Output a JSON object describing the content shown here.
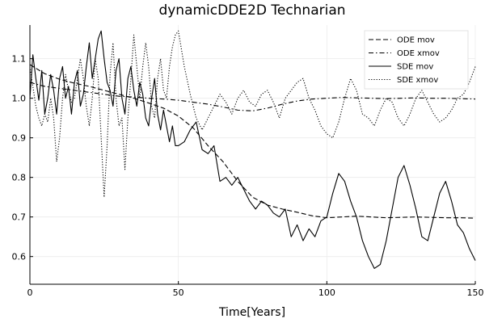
{
  "chart_data": {
    "type": "line",
    "title": "dynamicDDE2D Technarian",
    "xlabel": "Time[Years]",
    "ylabel": "",
    "xlim": [
      0,
      150
    ],
    "ylim": [
      0.53,
      1.185
    ],
    "xticks": [
      0,
      50,
      100,
      150
    ],
    "yticks": [
      0.6,
      0.7,
      0.8,
      0.9,
      1.0,
      1.1
    ],
    "xtick_labels": [
      "0",
      "50",
      "100",
      "150"
    ],
    "ytick_labels": [
      "0.6",
      "0.7",
      "0.8",
      "0.9",
      "1.0",
      "1.1"
    ],
    "grid": true,
    "legend_position": "top-right",
    "series": [
      {
        "name": "ODE mov",
        "style": "dashed",
        "color": "#000000",
        "x": [
          0,
          5,
          10,
          15,
          20,
          25,
          30,
          35,
          40,
          45,
          50,
          55,
          60,
          65,
          70,
          75,
          80,
          85,
          90,
          95,
          100,
          105,
          110,
          115,
          120,
          125,
          130,
          135,
          140,
          145,
          150
        ],
        "y": [
          1.085,
          1.062,
          1.048,
          1.038,
          1.03,
          1.02,
          1.01,
          1.0,
          0.988,
          0.975,
          0.955,
          0.925,
          0.88,
          0.84,
          0.79,
          0.75,
          0.73,
          0.72,
          0.712,
          0.703,
          0.698,
          0.7,
          0.702,
          0.7,
          0.698,
          0.699,
          0.7,
          0.699,
          0.698,
          0.698,
          0.697
        ]
      },
      {
        "name": "ODE xmov",
        "style": "dashdot",
        "color": "#000000",
        "x": [
          0,
          5,
          10,
          15,
          20,
          25,
          30,
          35,
          40,
          45,
          50,
          55,
          60,
          65,
          70,
          75,
          80,
          85,
          90,
          95,
          100,
          105,
          110,
          115,
          120,
          125,
          130,
          135,
          140,
          145,
          150
        ],
        "y": [
          1.04,
          1.03,
          1.025,
          1.02,
          1.015,
          1.01,
          1.005,
          1.003,
          1.0,
          0.998,
          0.995,
          0.99,
          0.985,
          0.978,
          0.97,
          0.968,
          0.975,
          0.985,
          0.993,
          0.998,
          1.0,
          1.002,
          1.001,
          1.0,
          0.999,
          1.0,
          1.001,
          1.0,
          1.0,
          0.999,
          0.998
        ]
      },
      {
        "name": "SDE mov",
        "style": "solid",
        "color": "#000000",
        "x": [
          0,
          1,
          2,
          3,
          4,
          5,
          6,
          7,
          8,
          9,
          10,
          11,
          12,
          13,
          14,
          15,
          16,
          17,
          18,
          19,
          20,
          21,
          22,
          23,
          24,
          25,
          26,
          27,
          28,
          29,
          30,
          31,
          32,
          33,
          34,
          35,
          36,
          37,
          38,
          39,
          40,
          41,
          42,
          43,
          44,
          45,
          46,
          47,
          48,
          49,
          50,
          52,
          54,
          56,
          58,
          60,
          62,
          64,
          66,
          68,
          70,
          72,
          74,
          76,
          78,
          80,
          82,
          84,
          86,
          88,
          90,
          92,
          94,
          96,
          98,
          100,
          102,
          104,
          106,
          108,
          110,
          112,
          114,
          116,
          118,
          120,
          122,
          124,
          126,
          128,
          130,
          132,
          134,
          136,
          138,
          140,
          142,
          144,
          146,
          148,
          150
        ],
        "y": [
          1.0,
          1.11,
          1.05,
          0.995,
          1.07,
          0.96,
          1.0,
          1.06,
          1.02,
          0.96,
          1.05,
          1.08,
          1.0,
          1.03,
          0.96,
          1.04,
          1.07,
          0.98,
          1.01,
          1.08,
          1.14,
          1.05,
          1.1,
          1.15,
          1.17,
          1.1,
          1.04,
          1.02,
          0.98,
          1.07,
          1.1,
          1.0,
          0.96,
          1.05,
          1.08,
          1.02,
          0.98,
          1.04,
          1.01,
          0.95,
          0.93,
          1.0,
          1.05,
          0.96,
          0.92,
          0.97,
          0.93,
          0.89,
          0.93,
          0.88,
          0.88,
          0.89,
          0.92,
          0.94,
          0.87,
          0.86,
          0.88,
          0.79,
          0.8,
          0.78,
          0.8,
          0.77,
          0.74,
          0.72,
          0.74,
          0.73,
          0.71,
          0.7,
          0.72,
          0.65,
          0.68,
          0.64,
          0.67,
          0.65,
          0.69,
          0.7,
          0.76,
          0.81,
          0.79,
          0.74,
          0.7,
          0.64,
          0.6,
          0.57,
          0.58,
          0.64,
          0.72,
          0.8,
          0.83,
          0.78,
          0.72,
          0.65,
          0.64,
          0.7,
          0.76,
          0.79,
          0.74,
          0.68,
          0.66,
          0.62,
          0.59
        ]
      },
      {
        "name": "SDE xmov",
        "style": "dotted",
        "color": "#000000",
        "x": [
          0,
          1,
          2,
          3,
          4,
          5,
          6,
          7,
          8,
          9,
          10,
          11,
          12,
          13,
          14,
          15,
          16,
          17,
          18,
          19,
          20,
          21,
          22,
          23,
          24,
          25,
          26,
          27,
          28,
          29,
          30,
          31,
          32,
          33,
          34,
          35,
          36,
          37,
          38,
          39,
          40,
          41,
          42,
          43,
          44,
          45,
          46,
          47,
          48,
          49,
          50,
          52,
          54,
          56,
          58,
          60,
          62,
          64,
          66,
          68,
          70,
          72,
          74,
          76,
          78,
          80,
          82,
          84,
          86,
          88,
          90,
          92,
          94,
          96,
          98,
          100,
          102,
          104,
          106,
          108,
          110,
          112,
          114,
          116,
          118,
          120,
          122,
          124,
          126,
          128,
          130,
          132,
          134,
          136,
          138,
          140,
          142,
          144,
          146,
          148,
          150
        ],
        "y": [
          1.08,
          1.03,
          0.98,
          0.95,
          0.93,
          0.96,
          0.94,
          1.0,
          0.95,
          0.84,
          0.9,
          1.0,
          1.06,
          1.02,
          0.99,
          1.0,
          1.05,
          1.1,
          1.05,
          0.98,
          0.93,
          1.0,
          1.1,
          1.05,
          0.9,
          0.75,
          0.88,
          1.06,
          1.14,
          1.0,
          0.93,
          0.95,
          0.82,
          0.95,
          1.05,
          1.16,
          1.08,
          1.0,
          1.08,
          1.14,
          1.08,
          0.98,
          0.95,
          1.05,
          1.1,
          1.02,
          1.0,
          1.08,
          1.13,
          1.16,
          1.17,
          1.08,
          1.01,
          0.95,
          0.92,
          0.95,
          0.98,
          1.01,
          0.99,
          0.96,
          1.0,
          1.02,
          0.99,
          0.98,
          1.01,
          1.02,
          0.99,
          0.95,
          1.0,
          1.02,
          1.04,
          1.05,
          1.0,
          0.97,
          0.93,
          0.91,
          0.9,
          0.94,
          1.0,
          1.05,
          1.02,
          0.96,
          0.95,
          0.93,
          0.97,
          1.0,
          0.99,
          0.95,
          0.93,
          0.96,
          1.0,
          1.02,
          0.99,
          0.96,
          0.94,
          0.95,
          0.97,
          1.0,
          1.01,
          1.04,
          1.08
        ]
      }
    ]
  }
}
